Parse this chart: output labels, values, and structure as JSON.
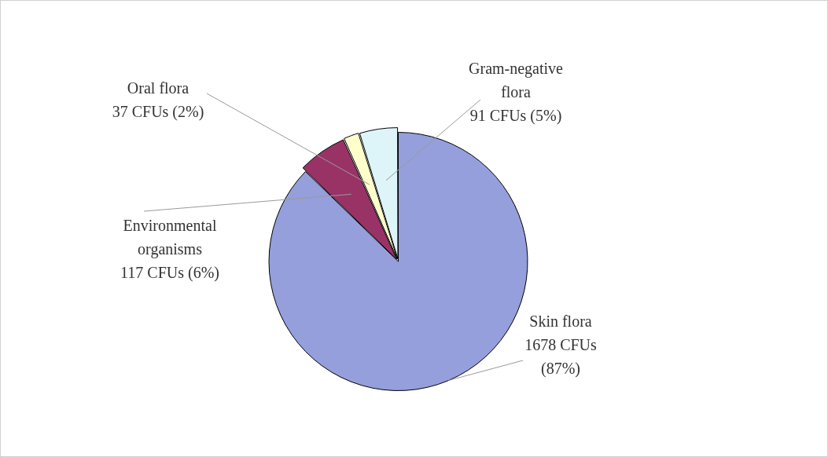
{
  "chart_data": {
    "type": "pie",
    "categories": [
      "Skin flora",
      "Environmental organisms",
      "Oral flora",
      "Gram-negative flora"
    ],
    "values": [
      1678,
      117,
      37,
      91
    ],
    "colors": [
      "#959fdc",
      "#993366",
      "#ffffcc",
      "#ddf4f8"
    ],
    "value_labels": [
      "1678 CFUs (87%)",
      "117 CFUs (6%)",
      "37 CFUs (2%)",
      "91 CFUs (5%)"
    ],
    "legend": false
  }
}
